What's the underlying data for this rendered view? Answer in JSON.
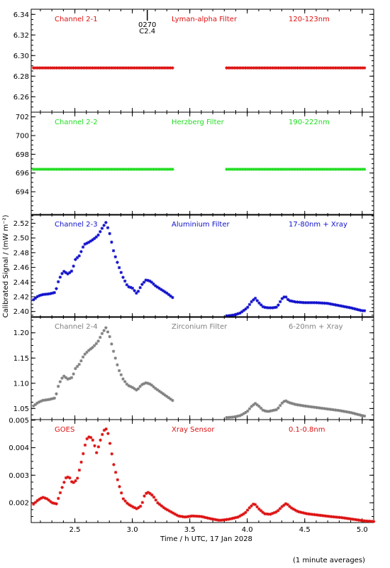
{
  "chart_data": {
    "type": "scatter",
    "xlabel": "Time / h UTC, 17 Jan 2028",
    "ylabel": "Calibrated Signal / (mW m⁻²)",
    "xlim": [
      2.12,
      5.1
    ],
    "xticks": [
      "2.5",
      "3.0",
      "3.5",
      "4.0",
      "4.5",
      "5.0"
    ],
    "xtick_values": [
      2.5,
      3.0,
      3.5,
      4.0,
      4.5,
      5.0
    ],
    "footnote": "(1 minute averages)",
    "marker_annotation": {
      "x": 3.13,
      "lines": [
        "0270",
        "C2.4"
      ]
    },
    "panels": [
      {
        "channel": "Channel 2-1",
        "filter": "Lyman-alpha Filter",
        "band": "120-123nm",
        "color": "#dd1111",
        "ylim": [
          6.245,
          6.345
        ],
        "yticks": [
          "6.26",
          "6.28",
          "6.30",
          "6.32",
          "6.34"
        ],
        "ytick_values": [
          6.26,
          6.28,
          6.3,
          6.32,
          6.34
        ],
        "segments": [
          {
            "x": [
              2.14,
              3.35
            ],
            "y": [
              6.288,
              6.288
            ]
          },
          {
            "x": [
              3.82,
              5.02
            ],
            "y": [
              6.288,
              6.288
            ]
          }
        ]
      },
      {
        "channel": "Channel 2-2",
        "filter": "Herzberg Filter",
        "band": "190-222nm",
        "color": "#22dd22",
        "ylim": [
          691.5,
          702.5
        ],
        "yticks": [
          "694",
          "696",
          "698",
          "700",
          "702"
        ],
        "ytick_values": [
          694,
          696,
          698,
          700,
          702
        ],
        "segments": [
          {
            "x": [
              2.14,
              3.35
            ],
            "y": [
              696.4,
              696.4
            ]
          },
          {
            "x": [
              3.82,
              5.02
            ],
            "y": [
              696.4,
              696.4
            ]
          }
        ]
      },
      {
        "channel": "Channel 2-3",
        "filter": "Aluminium Filter",
        "band": "17-80nm + Xray",
        "color": "#1111cc",
        "ylim": [
          2.392,
          2.532
        ],
        "yticks": [
          "2.40",
          "2.42",
          "2.44",
          "2.46",
          "2.48",
          "2.50",
          "2.52"
        ],
        "ytick_values": [
          2.4,
          2.42,
          2.44,
          2.46,
          2.48,
          2.5,
          2.52
        ],
        "segments": [
          {
            "x": [
              2.14,
              2.18,
              2.22,
              2.28,
              2.33,
              2.36,
              2.4,
              2.44,
              2.48,
              2.5,
              2.54,
              2.58,
              2.62,
              2.66,
              2.7,
              2.74,
              2.77,
              2.8,
              2.84,
              2.88,
              2.92,
              2.96,
              3.0,
              3.04,
              3.08,
              3.12,
              3.16,
              3.2,
              3.25,
              3.3,
              3.35
            ],
            "y": [
              2.416,
              2.421,
              2.423,
              2.424,
              2.426,
              2.443,
              2.455,
              2.451,
              2.456,
              2.47,
              2.476,
              2.491,
              2.494,
              2.498,
              2.503,
              2.514,
              2.521,
              2.508,
              2.48,
              2.462,
              2.446,
              2.434,
              2.432,
              2.424,
              2.436,
              2.443,
              2.441,
              2.435,
              2.43,
              2.425,
              2.419
            ]
          },
          {
            "x": [
              3.82,
              3.88,
              3.94,
              4.0,
              4.04,
              4.07,
              4.1,
              4.14,
              4.18,
              4.22,
              4.26,
              4.3,
              4.33,
              4.36,
              4.42,
              4.5,
              4.6,
              4.7,
              4.8,
              4.9,
              5.0,
              5.02
            ],
            "y": [
              2.394,
              2.395,
              2.398,
              2.405,
              2.414,
              2.418,
              2.412,
              2.406,
              2.405,
              2.405,
              2.406,
              2.417,
              2.421,
              2.415,
              2.413,
              2.412,
              2.412,
              2.411,
              2.408,
              2.405,
              2.401,
              2.401
            ]
          }
        ]
      },
      {
        "channel": "Channel 2-4",
        "filter": "Zirconium Filter",
        "band": "6-20nm + Xray",
        "color": "#808080",
        "ylim": [
          1.028,
          1.232
        ],
        "yticks": [
          "1.05",
          "1.10",
          "1.15",
          "1.20"
        ],
        "ytick_values": [
          1.05,
          1.1,
          1.15,
          1.2
        ],
        "segments": [
          {
            "x": [
              2.14,
              2.18,
              2.22,
              2.28,
              2.33,
              2.36,
              2.4,
              2.44,
              2.48,
              2.5,
              2.54,
              2.58,
              2.62,
              2.66,
              2.7,
              2.74,
              2.77,
              2.8,
              2.84,
              2.88,
              2.92,
              2.96,
              3.0,
              3.04,
              3.08,
              3.12,
              3.16,
              3.2,
              3.25,
              3.3,
              3.35
            ],
            "y": [
              1.055,
              1.062,
              1.066,
              1.068,
              1.071,
              1.098,
              1.115,
              1.108,
              1.112,
              1.128,
              1.138,
              1.156,
              1.165,
              1.172,
              1.182,
              1.2,
              1.21,
              1.195,
              1.16,
              1.128,
              1.108,
              1.096,
              1.092,
              1.086,
              1.097,
              1.101,
              1.098,
              1.09,
              1.082,
              1.074,
              1.066
            ]
          },
          {
            "x": [
              3.82,
              3.88,
              3.94,
              4.0,
              4.04,
              4.07,
              4.1,
              4.14,
              4.18,
              4.22,
              4.26,
              4.3,
              4.33,
              4.36,
              4.42,
              4.5,
              4.6,
              4.7,
              4.8,
              4.9,
              5.0,
              5.02
            ],
            "y": [
              1.032,
              1.033,
              1.036,
              1.044,
              1.055,
              1.06,
              1.055,
              1.046,
              1.044,
              1.046,
              1.048,
              1.06,
              1.066,
              1.062,
              1.058,
              1.055,
              1.052,
              1.049,
              1.046,
              1.042,
              1.036,
              1.035
            ]
          }
        ]
      },
      {
        "channel": "GOES",
        "filter": "Xray Sensor",
        "band": "0.1-0.8nm",
        "color": "#dd1111",
        "ylim": [
          0.00128,
          0.00502
        ],
        "yticks": [
          "0.002",
          "0.003",
          "0.004",
          "0.005"
        ],
        "ytick_values": [
          0.002,
          0.003,
          0.004,
          0.005
        ],
        "segments": [
          {
            "x": [
              2.14,
              2.18,
              2.22,
              2.26,
              2.3,
              2.34,
              2.38,
              2.42,
              2.45,
              2.48,
              2.52,
              2.56,
              2.6,
              2.63,
              2.66,
              2.69,
              2.72,
              2.75,
              2.78,
              2.81,
              2.84,
              2.88,
              2.92,
              2.96,
              3.0,
              3.04,
              3.08,
              3.11,
              3.14,
              3.18,
              3.22,
              3.28,
              3.34,
              3.4,
              3.46,
              3.52,
              3.6,
              3.68,
              3.76,
              3.84,
              3.92,
              3.98,
              4.02,
              4.06,
              4.1,
              4.15,
              4.2,
              4.26,
              4.3,
              4.34,
              4.38,
              4.44,
              4.52,
              4.62,
              4.72,
              4.82,
              4.92,
              5.02,
              5.1
            ],
            "y": [
              0.00195,
              0.0021,
              0.0022,
              0.00214,
              0.002,
              0.00196,
              0.00245,
              0.0029,
              0.00295,
              0.0027,
              0.00285,
              0.00355,
              0.0043,
              0.00442,
              0.00425,
              0.0038,
              0.00425,
              0.00462,
              0.0047,
              0.00405,
              0.00335,
              0.0027,
              0.00215,
              0.00196,
              0.00186,
              0.00178,
              0.0019,
              0.00232,
              0.00238,
              0.00225,
              0.002,
              0.0018,
              0.00166,
              0.00152,
              0.00148,
              0.00152,
              0.0015,
              0.00142,
              0.00136,
              0.0014,
              0.00148,
              0.00162,
              0.00182,
              0.00198,
              0.00178,
              0.0016,
              0.00158,
              0.00168,
              0.00185,
              0.00198,
              0.00182,
              0.00168,
              0.0016,
              0.00155,
              0.0015,
              0.00146,
              0.0014,
              0.00134,
              0.00132
            ]
          }
        ]
      }
    ]
  }
}
